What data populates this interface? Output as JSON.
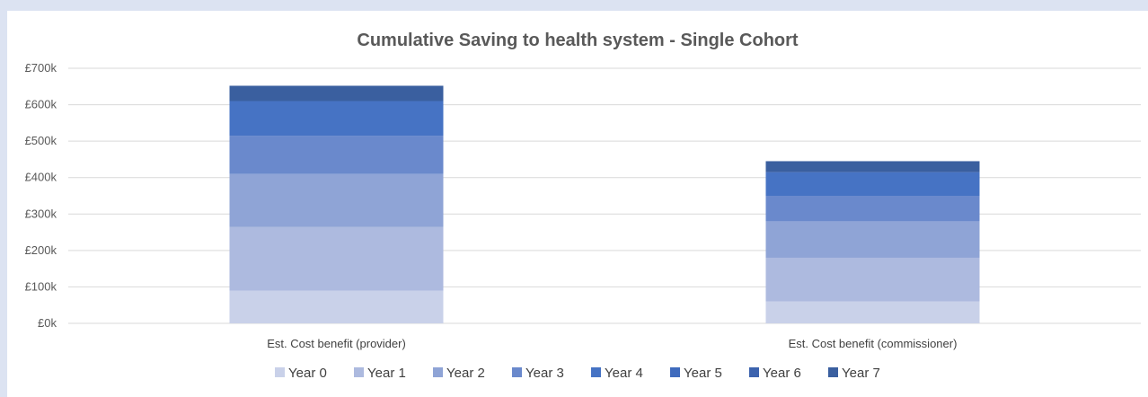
{
  "chart_data": {
    "type": "bar",
    "stacked": true,
    "title": "Cumulative Saving to health system - Single Cohort",
    "xlabel": "",
    "ylabel": "",
    "ylim": [
      0,
      700
    ],
    "yticks": [
      0,
      100,
      200,
      300,
      400,
      500,
      600,
      700
    ],
    "ytick_labels": [
      "£0k",
      "£100k",
      "£200k",
      "£300k",
      "£400k",
      "£500k",
      "£600k",
      "£700k"
    ],
    "categories": [
      "Est. Cost benefit (provider)",
      "Est. Cost benefit (commissioner)"
    ],
    "series": [
      {
        "name": "Year 0",
        "values": [
          90,
          60
        ],
        "color": "#c9d1e9"
      },
      {
        "name": "Year 1",
        "values": [
          175,
          120
        ],
        "color": "#adbadf"
      },
      {
        "name": "Year 2",
        "values": [
          145,
          100
        ],
        "color": "#8fa4d6"
      },
      {
        "name": "Year 3",
        "values": [
          105,
          70
        ],
        "color": "#6a89cc"
      },
      {
        "name": "Year 4",
        "values": [
          95,
          65
        ],
        "color": "#4673c4"
      },
      {
        "name": "Year 5",
        "values": [
          0,
          0
        ],
        "color": "#3f6bbd"
      },
      {
        "name": "Year 6",
        "values": [
          0,
          0
        ],
        "color": "#3c63ae"
      },
      {
        "name": "Year 7",
        "values": [
          42,
          30
        ],
        "color": "#3a5f9f"
      }
    ],
    "grid": true,
    "legend_position": "bottom"
  }
}
